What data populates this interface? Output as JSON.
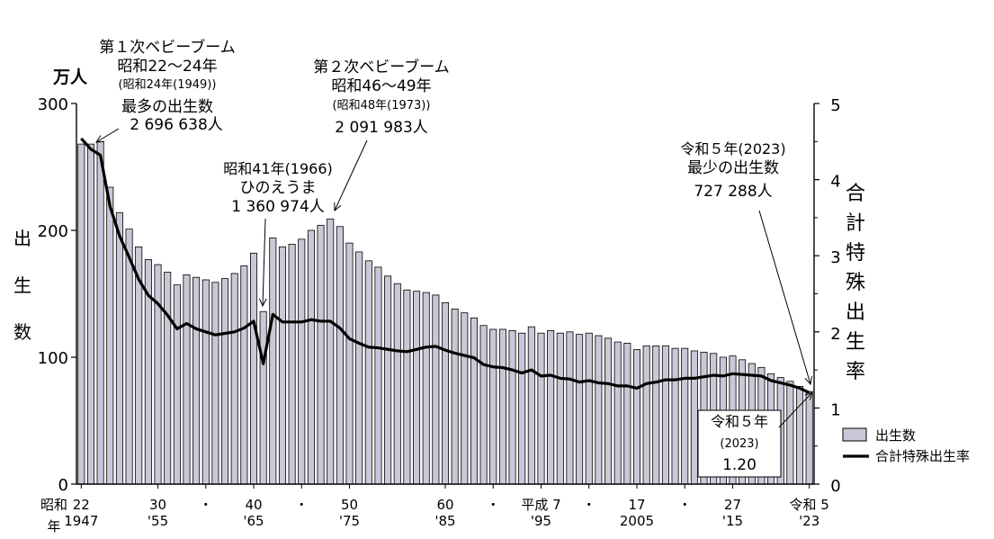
{
  "chart_data": {
    "type": "bar",
    "x": [
      1947,
      1948,
      1949,
      1950,
      1951,
      1952,
      1953,
      1954,
      1955,
      1956,
      1957,
      1958,
      1959,
      1960,
      1961,
      1962,
      1963,
      1964,
      1965,
      1966,
      1967,
      1968,
      1969,
      1970,
      1971,
      1972,
      1973,
      1974,
      1975,
      1976,
      1977,
      1978,
      1979,
      1980,
      1981,
      1982,
      1983,
      1984,
      1985,
      1986,
      1987,
      1988,
      1989,
      1990,
      1991,
      1992,
      1993,
      1994,
      1995,
      1996,
      1997,
      1998,
      1999,
      2000,
      2001,
      2002,
      2003,
      2004,
      2005,
      2006,
      2007,
      2008,
      2009,
      2010,
      2011,
      2012,
      2013,
      2014,
      2015,
      2016,
      2017,
      2018,
      2019,
      2020,
      2021,
      2022,
      2023
    ],
    "series": [
      {
        "name": "出生数",
        "axis": "left",
        "kind": "bar",
        "color": "#c8c8d8",
        "values": [
          268,
          268,
          270,
          234,
          214,
          201,
          187,
          177,
          173,
          167,
          157,
          165,
          163,
          161,
          159,
          162,
          166,
          172,
          182,
          136,
          194,
          187,
          189,
          193,
          200,
          204,
          209,
          203,
          190,
          183,
          176,
          171,
          164,
          158,
          153,
          152,
          151,
          149,
          143,
          138,
          135,
          131,
          125,
          122,
          122,
          121,
          119,
          124,
          119,
          121,
          119,
          120,
          118,
          119,
          117,
          115,
          112,
          111,
          106,
          109,
          109,
          109,
          107,
          107,
          105,
          104,
          103,
          100,
          101,
          98,
          95,
          92,
          87,
          84,
          81,
          77,
          73
        ]
      },
      {
        "name": "合計特殊出生率",
        "axis": "right",
        "kind": "line",
        "color": "#000000",
        "values": [
          4.54,
          4.4,
          4.32,
          3.65,
          3.26,
          2.98,
          2.69,
          2.48,
          2.37,
          2.22,
          2.04,
          2.11,
          2.04,
          2.0,
          1.96,
          1.98,
          2.0,
          2.05,
          2.14,
          1.58,
          2.23,
          2.13,
          2.13,
          2.13,
          2.16,
          2.14,
          2.14,
          2.05,
          1.91,
          1.85,
          1.8,
          1.79,
          1.77,
          1.75,
          1.74,
          1.77,
          1.8,
          1.81,
          1.76,
          1.72,
          1.69,
          1.66,
          1.57,
          1.54,
          1.53,
          1.5,
          1.46,
          1.5,
          1.42,
          1.43,
          1.39,
          1.38,
          1.34,
          1.36,
          1.33,
          1.32,
          1.29,
          1.29,
          1.26,
          1.32,
          1.34,
          1.37,
          1.37,
          1.39,
          1.39,
          1.41,
          1.43,
          1.42,
          1.45,
          1.44,
          1.43,
          1.42,
          1.36,
          1.33,
          1.3,
          1.26,
          1.2
        ]
      }
    ],
    "ylim": [
      0,
      300
    ],
    "y2lim": [
      0,
      5
    ],
    "yticks": [
      "0",
      "100",
      "200",
      "300"
    ],
    "y2ticks": [
      "0",
      "1",
      "2",
      "3",
      "4",
      "5"
    ],
    "yunit": "万人",
    "ylabel": [
      "出",
      "生",
      "数"
    ],
    "y2label": [
      "合",
      "計",
      "特",
      "殊",
      "出",
      "生",
      "率"
    ],
    "xticks": [
      {
        "year": 1947,
        "top": "22",
        "bottom": "1947"
      },
      {
        "year": 1955,
        "top": "30",
        "bottom": "'55"
      },
      {
        "year": 1960,
        "top": "・",
        "bottom": ""
      },
      {
        "year": 1965,
        "top": "40",
        "bottom": "'65"
      },
      {
        "year": 1970,
        "top": "・",
        "bottom": ""
      },
      {
        "year": 1975,
        "top": "50",
        "bottom": "'75"
      },
      {
        "year": 1985,
        "top": "60",
        "bottom": "'85"
      },
      {
        "year": 1990,
        "top": "・",
        "bottom": ""
      },
      {
        "year": 1995,
        "top": "平成 7",
        "bottom": "'95"
      },
      {
        "year": 2000,
        "top": "・",
        "bottom": ""
      },
      {
        "year": 2005,
        "top": "17",
        "bottom": "2005"
      },
      {
        "year": 2010,
        "top": "・",
        "bottom": ""
      },
      {
        "year": 2015,
        "top": "27",
        "bottom": "'15"
      },
      {
        "year": 2023,
        "top": "令和 5",
        "bottom": "'23"
      }
    ],
    "xera_showa": "昭和",
    "xera_nen": "年",
    "legend": {
      "position": "bottom-right",
      "items": [
        "出生数",
        "合計特殊出生率"
      ]
    },
    "annotations": [
      {
        "id": "boom1",
        "lines": [
          "第１次ベビーブーム",
          "昭和22～24年",
          "(昭和24年(1949))",
          "最多の出生数",
          "2 696 638人"
        ]
      },
      {
        "id": "boom2",
        "lines": [
          "第２次ベビーブーム",
          "昭和46～49年",
          "(昭和48年(1973))",
          "2 091 983人"
        ]
      },
      {
        "id": "hinoe",
        "lines": [
          "昭和41年(1966)",
          "ひのえうま",
          "1 360 974人"
        ]
      },
      {
        "id": "r5",
        "lines": [
          "令和５年(2023)",
          "最少の出生数",
          "727 288人"
        ]
      },
      {
        "id": "r5rate",
        "lines": [
          "令和５年",
          "(2023)",
          "1.20"
        ]
      }
    ]
  }
}
